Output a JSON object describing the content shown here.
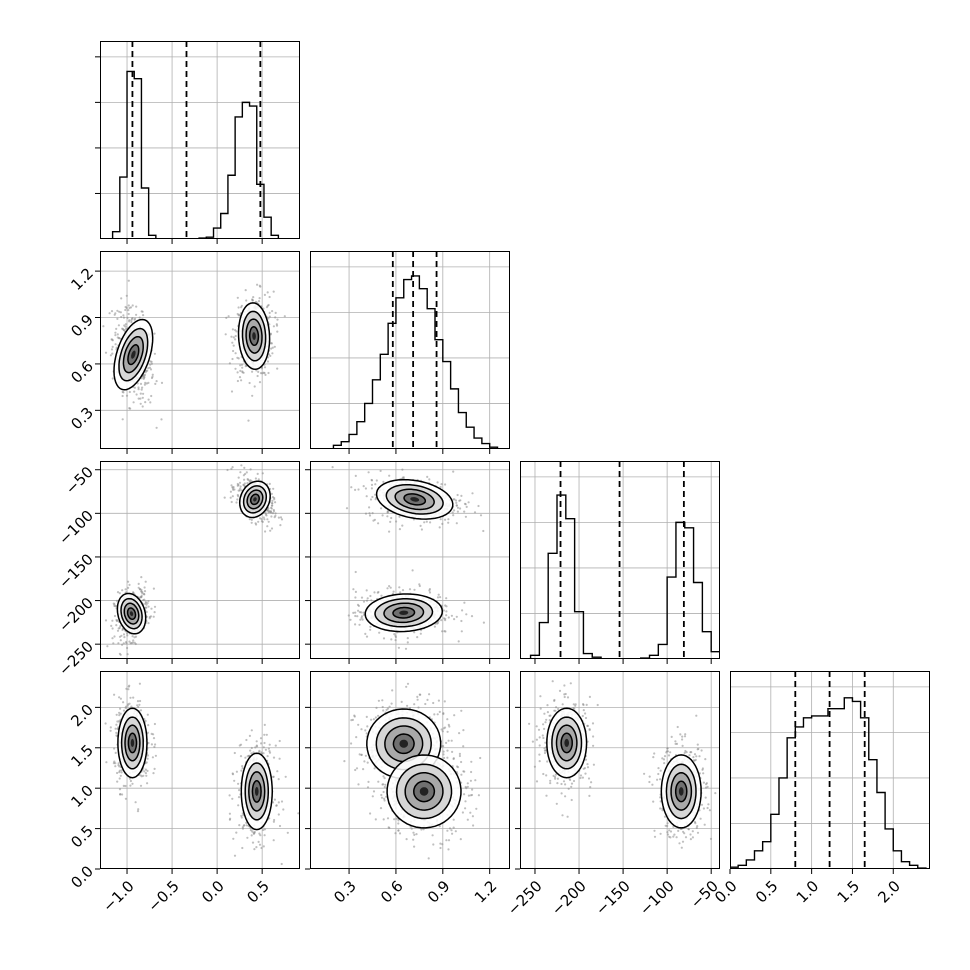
{
  "chart_data": {
    "type": "corner",
    "grid": true,
    "params": [
      {
        "ticks": [
          -1.0,
          -0.5,
          0.0,
          0.5
        ],
        "tick_labels": [
          "−1.0",
          "−0.5",
          "0.0",
          "0.5"
        ],
        "range": [
          -1.3,
          0.92
        ],
        "quantiles": [
          -0.94,
          -0.34,
          0.48
        ]
      },
      {
        "ticks": [
          0.3,
          0.6,
          0.9,
          1.2
        ],
        "tick_labels": [
          "0.3",
          "0.6",
          "0.9",
          "1.2"
        ],
        "range": [
          0.05,
          1.33
        ],
        "quantiles": [
          0.58,
          0.71,
          0.86
        ]
      },
      {
        "ticks": [
          -250,
          -200,
          -150,
          -100,
          -50
        ],
        "tick_labels": [
          "−250",
          "−200",
          "−150",
          "−100",
          "−50"
        ],
        "range": [
          -267,
          -40
        ],
        "quantiles": [
          -221,
          -154,
          -81
        ]
      },
      {
        "ticks": [
          0.0,
          0.5,
          1.0,
          1.5,
          2.0
        ],
        "tick_labels": [
          "0.0",
          "0.5",
          "1.0",
          "1.5",
          "2.0"
        ],
        "range": [
          0.0,
          2.45
        ],
        "quantiles": [
          0.8,
          1.22,
          1.65
        ]
      }
    ],
    "histograms": [
      {
        "param": 0,
        "bins": [
          [
            -1.16,
            -1.08,
            0.04
          ],
          [
            -1.08,
            -1.0,
            0.34
          ],
          [
            -1.0,
            -0.92,
            0.92
          ],
          [
            -0.92,
            -0.84,
            0.88
          ],
          [
            -0.84,
            -0.76,
            0.28
          ],
          [
            -0.76,
            -0.68,
            0.02
          ],
          [
            -0.2,
            -0.12,
            0.005
          ],
          [
            -0.12,
            -0.04,
            0.01
          ],
          [
            -0.04,
            0.04,
            0.06
          ],
          [
            0.04,
            0.12,
            0.14
          ],
          [
            0.12,
            0.2,
            0.35
          ],
          [
            0.2,
            0.28,
            0.67
          ],
          [
            0.28,
            0.36,
            0.75
          ],
          [
            0.36,
            0.44,
            0.73
          ],
          [
            0.44,
            0.52,
            0.3
          ],
          [
            0.52,
            0.6,
            0.12
          ],
          [
            0.6,
            0.68,
            0.02
          ]
        ]
      },
      {
        "param": 1,
        "bins": [
          [
            0.2,
            0.25,
            0.02
          ],
          [
            0.25,
            0.3,
            0.04
          ],
          [
            0.3,
            0.35,
            0.08
          ],
          [
            0.35,
            0.4,
            0.15
          ],
          [
            0.4,
            0.45,
            0.25
          ],
          [
            0.45,
            0.5,
            0.38
          ],
          [
            0.5,
            0.55,
            0.52
          ],
          [
            0.55,
            0.6,
            0.69
          ],
          [
            0.6,
            0.65,
            0.83
          ],
          [
            0.65,
            0.7,
            0.93
          ],
          [
            0.7,
            0.75,
            0.95
          ],
          [
            0.75,
            0.8,
            0.88
          ],
          [
            0.8,
            0.85,
            0.77
          ],
          [
            0.85,
            0.9,
            0.6
          ],
          [
            0.9,
            0.95,
            0.48
          ],
          [
            0.95,
            1.0,
            0.33
          ],
          [
            1.0,
            1.05,
            0.2
          ],
          [
            1.05,
            1.1,
            0.12
          ],
          [
            1.1,
            1.15,
            0.06
          ],
          [
            1.15,
            1.2,
            0.03
          ],
          [
            1.2,
            1.25,
            0.01
          ]
        ]
      },
      {
        "param": 2,
        "bins": [
          [
            -255,
            -245,
            0.02
          ],
          [
            -245,
            -235,
            0.2
          ],
          [
            -235,
            -225,
            0.58
          ],
          [
            -225,
            -215,
            0.9
          ],
          [
            -215,
            -205,
            0.77
          ],
          [
            -205,
            -195,
            0.26
          ],
          [
            -195,
            -185,
            0.03
          ],
          [
            -185,
            -175,
            0.01
          ],
          [
            -130,
            -120,
            0.005
          ],
          [
            -120,
            -110,
            0.02
          ],
          [
            -110,
            -100,
            0.08
          ],
          [
            -100,
            -90,
            0.45
          ],
          [
            -90,
            -80,
            0.75
          ],
          [
            -80,
            -70,
            0.72
          ],
          [
            -70,
            -60,
            0.42
          ],
          [
            -60,
            -50,
            0.15
          ],
          [
            -50,
            -40,
            0.04
          ]
        ]
      },
      {
        "param": 3,
        "bins": [
          [
            0.0,
            0.1,
            0.01
          ],
          [
            0.1,
            0.2,
            0.02
          ],
          [
            0.2,
            0.3,
            0.05
          ],
          [
            0.3,
            0.4,
            0.1
          ],
          [
            0.4,
            0.5,
            0.15
          ],
          [
            0.5,
            0.6,
            0.3
          ],
          [
            0.6,
            0.7,
            0.5
          ],
          [
            0.7,
            0.8,
            0.72
          ],
          [
            0.8,
            0.9,
            0.78
          ],
          [
            0.9,
            1.0,
            0.83
          ],
          [
            1.0,
            1.1,
            0.84
          ],
          [
            1.1,
            1.2,
            0.84
          ],
          [
            1.2,
            1.3,
            0.88
          ],
          [
            1.3,
            1.4,
            0.88
          ],
          [
            1.4,
            1.5,
            0.94
          ],
          [
            1.5,
            1.6,
            0.92
          ],
          [
            1.6,
            1.7,
            0.83
          ],
          [
            1.7,
            1.8,
            0.6
          ],
          [
            1.8,
            1.9,
            0.42
          ],
          [
            1.9,
            2.0,
            0.22
          ],
          [
            2.0,
            2.1,
            0.1
          ],
          [
            2.1,
            2.2,
            0.04
          ],
          [
            2.2,
            2.3,
            0.02
          ],
          [
            2.3,
            2.4,
            0.005
          ]
        ]
      }
    ],
    "joint_panels": [
      {
        "x_param": 0,
        "y_param": 1,
        "clusters": [
          {
            "x": -0.93,
            "y": 0.66,
            "sx": 0.085,
            "sy": 0.11,
            "rho": -0.35
          },
          {
            "x": 0.41,
            "y": 0.78,
            "sx": 0.08,
            "sy": 0.1,
            "rho": 0.05
          }
        ]
      },
      {
        "x_param": 0,
        "y_param": 2,
        "clusters": [
          {
            "x": -0.95,
            "y": -215,
            "sx": 0.07,
            "sy": 11,
            "rho": 0.3
          },
          {
            "x": 0.42,
            "y": -84,
            "sx": 0.075,
            "sy": 10,
            "rho": -0.45
          }
        ]
      },
      {
        "x_param": 1,
        "y_param": 2,
        "clusters": [
          {
            "x": 0.72,
            "y": -84,
            "sx": 0.115,
            "sy": 10,
            "rho": -0.2
          },
          {
            "x": 0.65,
            "y": -214,
            "sx": 0.115,
            "sy": 10,
            "rho": 0.05
          }
        ]
      },
      {
        "x_param": 0,
        "y_param": 3,
        "clusters": [
          {
            "x": -0.94,
            "y": 1.56,
            "sx": 0.075,
            "sy": 0.2,
            "rho": 0.0
          },
          {
            "x": 0.44,
            "y": 0.96,
            "sx": 0.08,
            "sy": 0.22,
            "rho": 0.0
          }
        ]
      },
      {
        "x_param": 1,
        "y_param": 3,
        "clusters": [
          {
            "x": 0.65,
            "y": 1.55,
            "sx": 0.11,
            "sy": 0.2,
            "rho": 0.05
          },
          {
            "x": 0.78,
            "y": 0.96,
            "sx": 0.11,
            "sy": 0.21,
            "rho": 0.05
          }
        ]
      },
      {
        "x_param": 2,
        "y_param": 3,
        "clusters": [
          {
            "x": -214,
            "y": 1.56,
            "sx": 10.5,
            "sy": 0.2,
            "rho": 0.0
          },
          {
            "x": -84,
            "y": 0.96,
            "sx": 10.5,
            "sy": 0.21,
            "rho": 0.0
          }
        ]
      }
    ]
  }
}
